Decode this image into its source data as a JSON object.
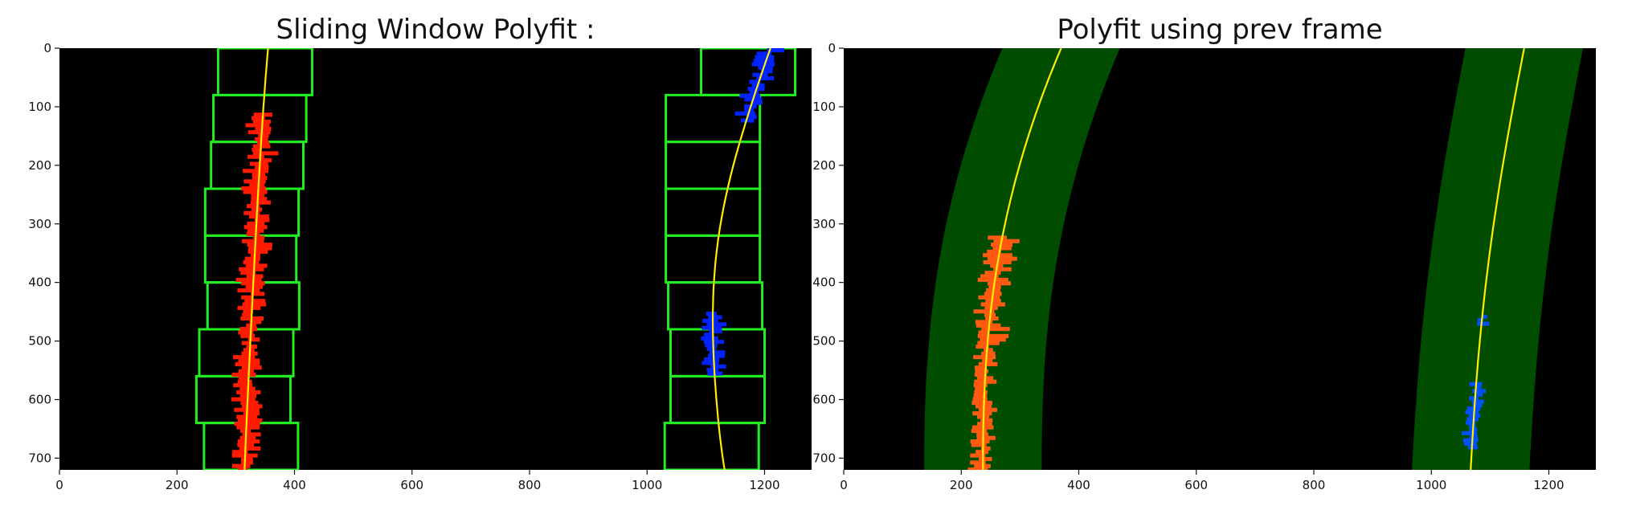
{
  "chart_data": [
    {
      "type": "image",
      "title": "Sliding Window Polyfit :",
      "xlim": [
        0,
        1280
      ],
      "ylim": [
        720,
        0
      ],
      "xticks": [
        0,
        200,
        400,
        600,
        800,
        1000,
        1200
      ],
      "yticks": [
        0,
        100,
        200,
        300,
        400,
        500,
        600,
        700
      ],
      "windows": [
        {
          "lane": "left",
          "x_ranges": [
            [
              270,
              430
            ],
            [
              262,
              420
            ],
            [
              258,
              415
            ],
            [
              248,
              407
            ],
            [
              248,
              403
            ],
            [
              252,
              408
            ],
            [
              238,
              398
            ],
            [
              233,
              393
            ],
            [
              246,
              406
            ]
          ]
        },
        {
          "lane": "right",
          "x_ranges": [
            [
              1092,
              1252
            ],
            [
              1032,
              1192
            ],
            [
              1032,
              1192
            ],
            [
              1032,
              1192
            ],
            [
              1032,
              1192
            ],
            [
              1036,
              1196
            ],
            [
              1040,
              1200
            ],
            [
              1040,
              1200
            ],
            [
              1030,
              1190
            ]
          ]
        }
      ],
      "fit_left": {
        "y": [
          0,
          180,
          360,
          540,
          720
        ],
        "x": [
          355,
          342,
          332,
          323,
          315
        ]
      },
      "fit_right": {
        "y": [
          0,
          120,
          240,
          360,
          480,
          600,
          720
        ],
        "x": [
          1210,
          1170,
          1137,
          1117,
          1112,
          1118,
          1132
        ]
      },
      "colors": {
        "background": "#000000",
        "windows": "#22ee22",
        "fit": "#ffee00",
        "left_pixels": "#ff1a00",
        "right_pixels": "#0022ff"
      }
    },
    {
      "type": "image",
      "title": "Polyfit using prev frame",
      "xlim": [
        0,
        1280
      ],
      "ylim": [
        720,
        0
      ],
      "xticks": [
        0,
        200,
        400,
        600,
        800,
        1000,
        1200
      ],
      "yticks": [
        0,
        100,
        200,
        300,
        400,
        500,
        600,
        700
      ],
      "fit_left": {
        "y": [
          0,
          180,
          360,
          540,
          720
        ],
        "x": [
          370,
          305,
          263,
          242,
          237
        ]
      },
      "fit_right": {
        "y": [
          0,
          180,
          360,
          540,
          720
        ],
        "x": [
          1158,
          1125,
          1098,
          1079,
          1067
        ]
      },
      "margin": 100,
      "colors": {
        "background": "#000000",
        "band": "#004d00",
        "fit": "#ffee00",
        "left_pixels": "#ff5a10",
        "right_pixels": "#0050ff"
      }
    }
  ]
}
